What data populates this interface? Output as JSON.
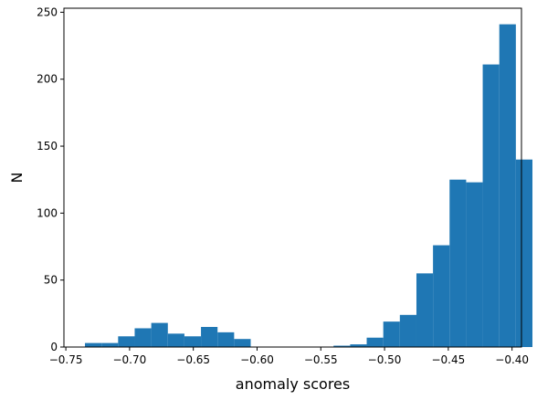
{
  "chart_data": {
    "type": "bar",
    "subtype": "histogram",
    "title": "",
    "xlabel": "anomaly scores",
    "ylabel": "N",
    "xlim": [
      -0.7515,
      -0.3926
    ],
    "ylim": [
      0,
      253
    ],
    "grid": false,
    "bar_color": "#1f77b4",
    "x_ticks": [
      {
        "value": -0.75,
        "label": "−0.75"
      },
      {
        "value": -0.7,
        "label": "−0.70"
      },
      {
        "value": -0.65,
        "label": "−0.65"
      },
      {
        "value": -0.6,
        "label": "−0.60"
      },
      {
        "value": -0.55,
        "label": "−0.55"
      },
      {
        "value": -0.5,
        "label": "−0.50"
      },
      {
        "value": -0.45,
        "label": "−0.45"
      },
      {
        "value": -0.4,
        "label": "−0.40"
      }
    ],
    "y_ticks": [
      {
        "value": 0,
        "label": "0"
      },
      {
        "value": 50,
        "label": "50"
      },
      {
        "value": 100,
        "label": "100"
      },
      {
        "value": 150,
        "label": "150"
      },
      {
        "value": 200,
        "label": "200"
      },
      {
        "value": 250,
        "label": "250"
      }
    ],
    "bin_start": -0.735,
    "bin_width": 0.013,
    "counts": [
      3,
      3,
      8,
      14,
      18,
      10,
      8,
      15,
      11,
      6,
      0,
      0,
      0,
      0,
      0,
      1,
      2,
      7,
      19,
      24,
      55,
      76,
      125,
      123,
      211,
      241,
      140
    ]
  }
}
